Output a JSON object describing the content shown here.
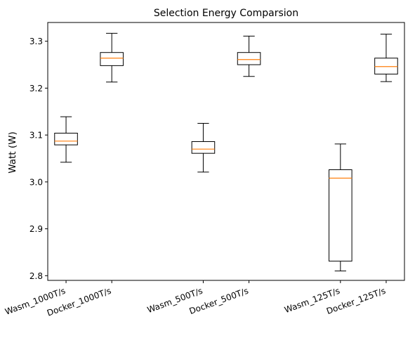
{
  "chart_data": {
    "type": "box",
    "title": "Selection Energy Comparsion",
    "xlabel": "",
    "ylabel": "Watt (W)",
    "ylim": [
      2.79,
      3.34
    ],
    "yticks": [
      "2.8",
      "2.9",
      "3.0",
      "3.1",
      "3.2",
      "3.3"
    ],
    "grid": false,
    "median_color": "#ff7f0e",
    "box_color": "#000000",
    "categories": [
      "Wasm_1000T/s",
      "Docker_1000T/s",
      "Wasm_500T/s",
      "Docker_500T/s",
      "Wasm_125T/s",
      "Docker_125T/s"
    ],
    "x": [
      1,
      2,
      4,
      5,
      7,
      8
    ],
    "boxes": [
      {
        "category": "Wasm_1000T/s",
        "whisker_low": 3.042,
        "q1": 3.079,
        "median": 3.087,
        "q3": 3.104,
        "whisker_high": 3.139
      },
      {
        "category": "Docker_1000T/s",
        "whisker_low": 3.213,
        "q1": 3.248,
        "median": 3.264,
        "q3": 3.276,
        "whisker_high": 3.317
      },
      {
        "category": "Wasm_500T/s",
        "whisker_low": 3.021,
        "q1": 3.061,
        "median": 3.07,
        "q3": 3.086,
        "whisker_high": 3.125
      },
      {
        "category": "Docker_500T/s",
        "whisker_low": 3.225,
        "q1": 3.25,
        "median": 3.261,
        "q3": 3.276,
        "whisker_high": 3.311
      },
      {
        "category": "Wasm_125T/s",
        "whisker_low": 2.81,
        "q1": 2.831,
        "median": 3.008,
        "q3": 3.026,
        "whisker_high": 3.081
      },
      {
        "category": "Docker_125T/s",
        "whisker_low": 3.214,
        "q1": 3.23,
        "median": 3.246,
        "q3": 3.264,
        "whisker_high": 3.315
      }
    ]
  }
}
